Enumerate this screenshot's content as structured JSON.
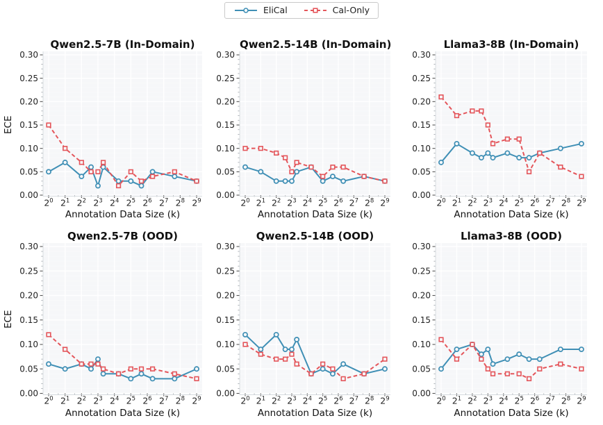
{
  "figure": {
    "background": "#ffffff",
    "plot_background": "#f6f7f9",
    "grid_color": "#ffffff"
  },
  "chart_data": {
    "type": "line",
    "xlabel": "Annotation Data Size (k)",
    "ylabel": "ECE",
    "ylim": [
      0,
      0.3
    ],
    "y_ticks": [
      "0.00",
      "0.05",
      "0.10",
      "0.15",
      "0.20",
      "0.25",
      "0.30"
    ],
    "x_ticks": [
      {
        "base": "2",
        "exp": "0"
      },
      {
        "base": "2",
        "exp": "1"
      },
      {
        "base": "2",
        "exp": "2"
      },
      {
        "base": "2",
        "exp": "3"
      },
      {
        "base": "2",
        "exp": "4"
      },
      {
        "base": "2",
        "exp": "5"
      },
      {
        "base": "2",
        "exp": "6"
      },
      {
        "base": "2",
        "exp": "7"
      },
      {
        "base": "2",
        "exp": "8"
      },
      {
        "base": "2",
        "exp": "9"
      }
    ],
    "x_scale": "log2",
    "x_log2": [
      0,
      1,
      2,
      2.58,
      3,
      3.32,
      4.25,
      5,
      5.64,
      6.32,
      7.66,
      9
    ],
    "grid": true,
    "legend_position": "top-center",
    "legend": [
      {
        "label": "EliCal",
        "color": "#3f8fb5",
        "marker": "circle",
        "line": "solid"
      },
      {
        "label": "Cal-Only",
        "color": "#e4555a",
        "marker": "square",
        "line": "dashed"
      }
    ],
    "charts": [
      {
        "title": "Qwen2.5-7B (In-Domain)",
        "series": [
          {
            "name": "EliCal",
            "values": [
              0.05,
              0.07,
              0.04,
              0.06,
              0.02,
              0.06,
              0.03,
              0.03,
              0.02,
              0.05,
              0.04,
              0.03
            ]
          },
          {
            "name": "Cal-Only",
            "values": [
              0.15,
              0.1,
              0.07,
              0.05,
              0.05,
              0.07,
              0.02,
              0.05,
              0.03,
              0.04,
              0.05,
              0.03
            ]
          }
        ]
      },
      {
        "title": "Qwen2.5-14B (In-Domain)",
        "series": [
          {
            "name": "EliCal",
            "values": [
              0.06,
              0.05,
              0.03,
              0.03,
              0.03,
              0.05,
              0.06,
              0.03,
              0.04,
              0.03,
              0.04,
              0.03
            ]
          },
          {
            "name": "Cal-Only",
            "values": [
              0.1,
              0.1,
              0.09,
              0.08,
              0.05,
              0.07,
              0.06,
              0.04,
              0.06,
              0.06,
              0.04,
              0.03
            ]
          }
        ]
      },
      {
        "title": "Llama3-8B (In-Domain)",
        "series": [
          {
            "name": "EliCal",
            "values": [
              0.07,
              0.11,
              0.09,
              0.08,
              0.09,
              0.08,
              0.09,
              0.08,
              0.08,
              0.09,
              0.1,
              0.11
            ]
          },
          {
            "name": "Cal-Only",
            "values": [
              0.21,
              0.17,
              0.18,
              0.18,
              0.15,
              0.11,
              0.12,
              0.12,
              0.05,
              0.09,
              0.06,
              0.04
            ]
          }
        ]
      },
      {
        "title": "Qwen2.5-7B (OOD)",
        "series": [
          {
            "name": "EliCal",
            "values": [
              0.06,
              0.05,
              0.06,
              0.05,
              0.07,
              0.04,
              0.04,
              0.03,
              0.04,
              0.03,
              0.03,
              0.05
            ]
          },
          {
            "name": "Cal-Only",
            "values": [
              0.12,
              0.09,
              0.06,
              0.06,
              0.06,
              0.05,
              0.04,
              0.05,
              0.05,
              0.05,
              0.04,
              0.03
            ]
          }
        ]
      },
      {
        "title": "Qwen2.5-14B (OOD)",
        "series": [
          {
            "name": "EliCal",
            "values": [
              0.12,
              0.09,
              0.12,
              0.09,
              0.09,
              0.11,
              0.04,
              0.05,
              0.04,
              0.06,
              0.04,
              0.05
            ]
          },
          {
            "name": "Cal-Only",
            "values": [
              0.1,
              0.08,
              0.07,
              0.07,
              0.08,
              0.06,
              0.04,
              0.06,
              0.05,
              0.03,
              0.04,
              0.07
            ]
          }
        ]
      },
      {
        "title": "Llama3-8B (OOD)",
        "series": [
          {
            "name": "EliCal",
            "values": [
              0.05,
              0.09,
              0.1,
              0.08,
              0.09,
              0.06,
              0.07,
              0.08,
              0.07,
              0.07,
              0.09,
              0.09
            ]
          },
          {
            "name": "Cal-Only",
            "values": [
              0.11,
              0.07,
              0.1,
              0.07,
              0.05,
              0.04,
              0.04,
              0.04,
              0.03,
              0.05,
              0.06,
              0.05
            ]
          }
        ]
      }
    ]
  }
}
